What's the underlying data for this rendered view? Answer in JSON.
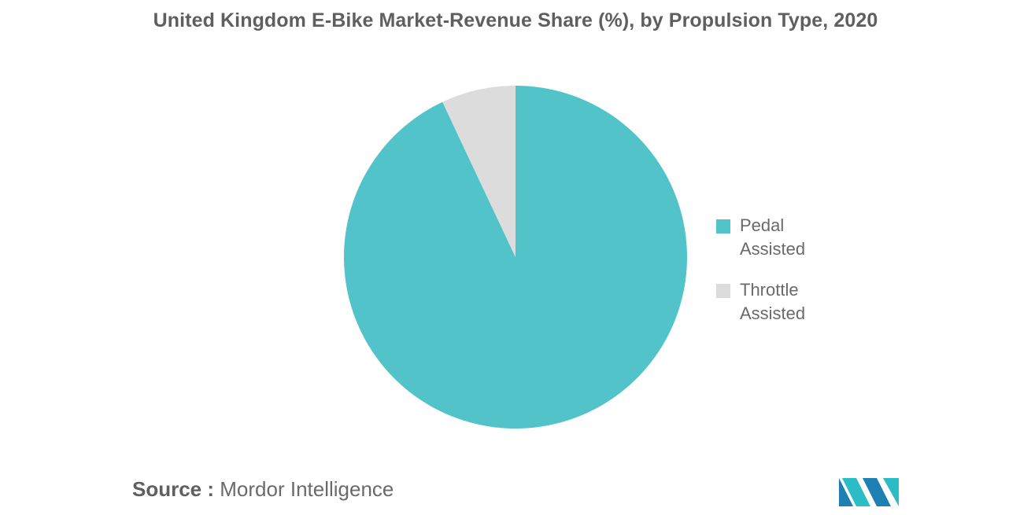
{
  "chart_data": {
    "type": "pie",
    "title": "United Kingdom E-Bike Market-Revenue Share (%), by Propulsion Type, 2020",
    "categories": [
      "Pedal Assisted",
      "Throttle Assisted"
    ],
    "values": [
      93,
      7
    ],
    "colors": [
      "#52c3c9",
      "#dcdcdc"
    ],
    "legend_position": "right",
    "start_angle_deg": 0,
    "direction": "clockwise"
  },
  "legend": {
    "items": [
      {
        "label": "Pedal Assisted",
        "color": "#52c3c9"
      },
      {
        "label": "Throttle Assisted",
        "color": "#dcdcdc"
      }
    ]
  },
  "source": {
    "label": "Source :",
    "value": "Mordor Intelligence"
  },
  "logo": {
    "icon": "mordor-intelligence-logo-icon",
    "colors": [
      "#1e7fb3",
      "#2bbcc5"
    ]
  }
}
